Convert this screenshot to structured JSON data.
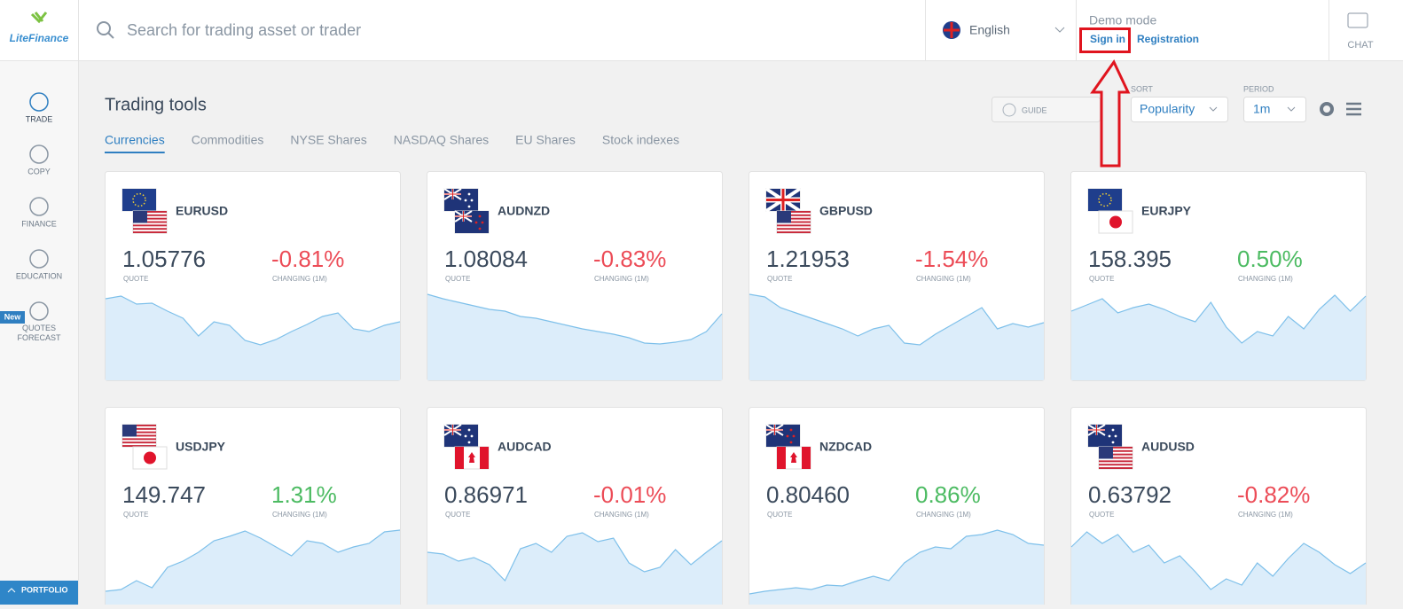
{
  "header": {
    "logo": "LiteFinance",
    "search_placeholder": "Search for trading asset or trader",
    "language": "English",
    "demo_mode": "Demo mode",
    "sign_in": "Sign in",
    "registration": "Registration",
    "chat": "CHAT"
  },
  "sidebar": {
    "items": [
      "TRADE",
      "COPY",
      "FINANCE",
      "EDUCATION",
      "QUOTES FORECAST"
    ],
    "new_badge": "New",
    "portfolio": "PORTFOLIO"
  },
  "toolbar": {
    "title": "Trading tools",
    "guide": "GUIDE",
    "sort_label": "SORT",
    "sort_value": "Popularity",
    "period_label": "PERIOD",
    "period_value": "1m"
  },
  "tabs": [
    "Currencies",
    "Commodities",
    "NYSE Shares",
    "NASDAQ Shares",
    "EU Shares",
    "Stock indexes"
  ],
  "cards": [
    {
      "symbol": "EURUSD",
      "quote": "1.05776",
      "quote_label": "QUOTE",
      "change": "-0.81%",
      "change_label": "CHANGING (1M)",
      "spark": [
        92,
        95,
        86,
        87,
        78,
        70,
        50,
        66,
        62,
        45,
        40,
        46,
        55,
        63,
        72,
        76,
        58,
        55,
        62,
        66
      ]
    },
    {
      "symbol": "AUDNZD",
      "quote": "1.08084",
      "quote_label": "QUOTE",
      "change": "-0.83%",
      "change_label": "CHANGING (1M)",
      "spark": [
        97,
        92,
        88,
        84,
        80,
        78,
        72,
        70,
        66,
        62,
        58,
        55,
        52,
        48,
        42,
        41,
        43,
        46,
        55,
        75
      ]
    },
    {
      "symbol": "GBPUSD",
      "quote": "1.21953",
      "quote_label": "QUOTE",
      "change": "-1.54%",
      "change_label": "CHANGING (1M)",
      "spark": [
        97,
        94,
        82,
        76,
        70,
        64,
        58,
        50,
        58,
        62,
        42,
        40,
        52,
        62,
        72,
        82,
        58,
        64,
        60,
        65
      ]
    },
    {
      "symbol": "EURJPY",
      "quote": "158.395",
      "quote_label": "QUOTE",
      "change": "0.50%",
      "change_label": "CHANGING (1M)",
      "spark": [
        78,
        85,
        92,
        76,
        82,
        86,
        80,
        72,
        66,
        88,
        60,
        42,
        55,
        50,
        72,
        58,
        80,
        96,
        78,
        95
      ]
    },
    {
      "symbol": "USDJPY",
      "quote": "149.747",
      "quote_label": "QUOTE",
      "change": "1.31%",
      "change_label": "CHANGING (1M)",
      "spark": [
        28,
        30,
        40,
        32,
        55,
        62,
        72,
        85,
        90,
        96,
        88,
        78,
        68,
        85,
        82,
        72,
        78,
        82,
        95,
        97
      ]
    },
    {
      "symbol": "AUDCAD",
      "quote": "0.86971",
      "quote_label": "QUOTE",
      "change": "-0.01%",
      "change_label": "CHANGING (1M)",
      "spark": [
        72,
        70,
        62,
        66,
        58,
        40,
        76,
        82,
        72,
        90,
        94,
        84,
        88,
        60,
        50,
        55,
        75,
        58,
        72,
        85
      ]
    },
    {
      "symbol": "NZDCAD",
      "quote": "0.80460",
      "quote_label": "QUOTE",
      "change": "0.86%",
      "change_label": "CHANGING (1M)",
      "spark": [
        25,
        28,
        30,
        32,
        30,
        35,
        34,
        40,
        45,
        40,
        60,
        72,
        78,
        76,
        90,
        92,
        97,
        92,
        82,
        80
      ]
    },
    {
      "symbol": "AUDUSD",
      "quote": "0.63792",
      "quote_label": "QUOTE",
      "change": "-0.82%",
      "change_label": "CHANGING (1M)",
      "spark": [
        78,
        95,
        82,
        92,
        72,
        80,
        60,
        68,
        50,
        30,
        42,
        35,
        60,
        45,
        65,
        82,
        72,
        58,
        48,
        60
      ]
    }
  ]
}
